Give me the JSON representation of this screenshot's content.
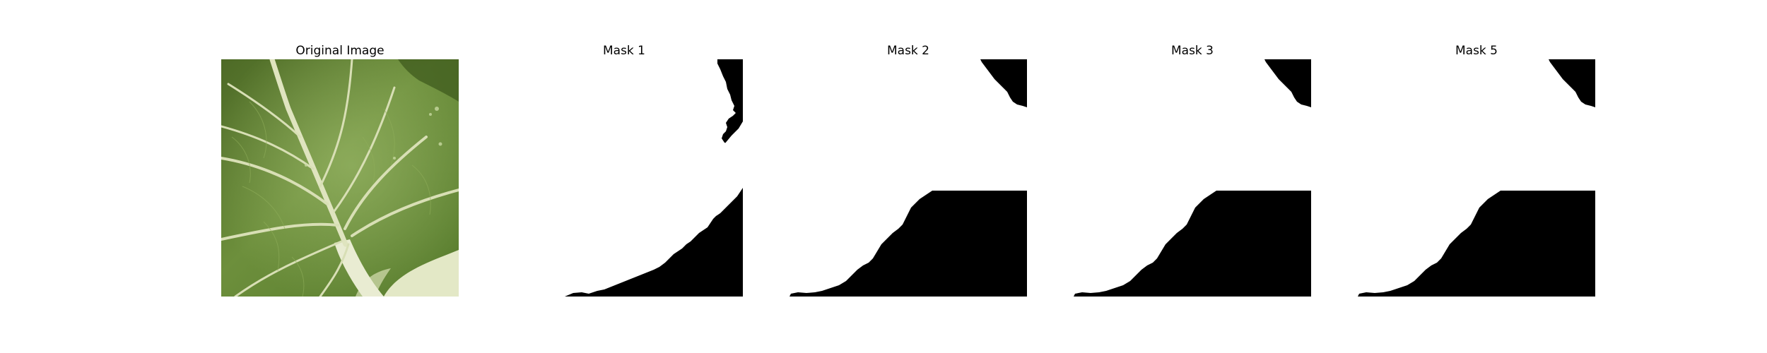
{
  "panels": [
    {
      "title": "Original Image",
      "type": "photo",
      "subject": "cabbage-leaf-closeup"
    },
    {
      "title": "Mask 1",
      "type": "mask"
    },
    {
      "title": "Mask 2",
      "type": "mask"
    },
    {
      "title": "Mask 3",
      "type": "mask"
    },
    {
      "title": "Mask 5",
      "type": "mask"
    }
  ],
  "colors": {
    "background": "#ffffff",
    "mask_foreground": "#ffffff",
    "mask_background": "#000000",
    "leaf_dark": "#4d6a26",
    "leaf_mid": "#6d8f3c",
    "leaf_light": "#9ab865",
    "vein": "#dfe4bf",
    "stem": "#e9ecd2"
  }
}
